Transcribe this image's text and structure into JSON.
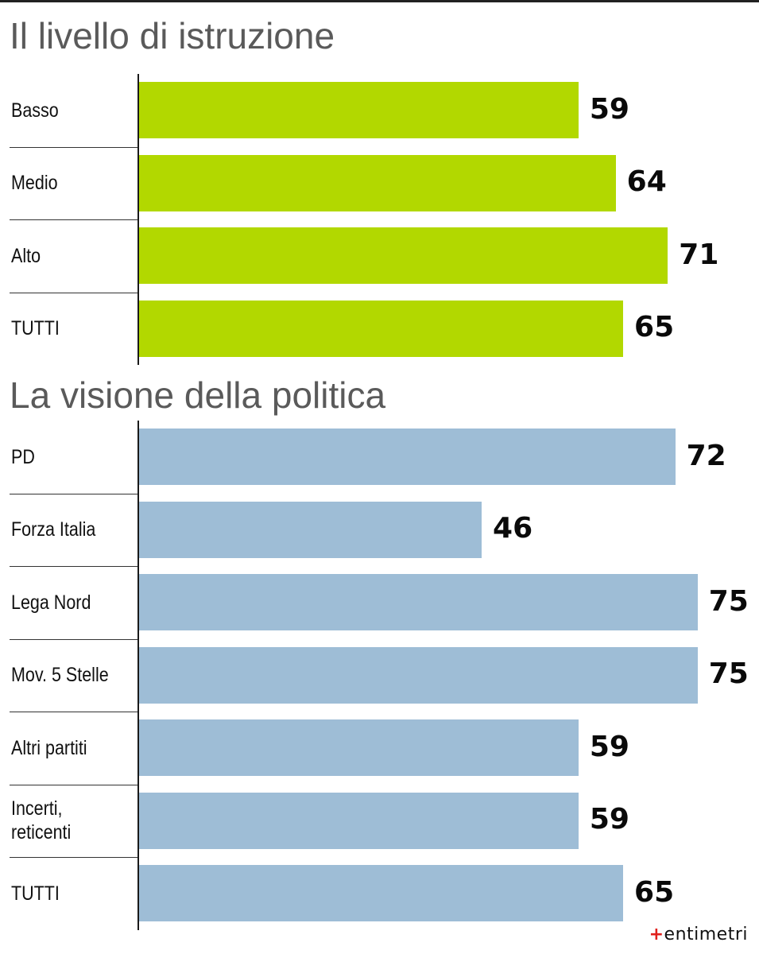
{
  "chart_data": [
    {
      "type": "bar",
      "orientation": "horizontal",
      "title": "Il livello di istruzione",
      "categories": [
        "Basso",
        "Medio",
        "Alto",
        "TUTTI"
      ],
      "values": [
        59,
        64,
        71,
        65
      ],
      "color": "#b2d800"
    },
    {
      "type": "bar",
      "orientation": "horizontal",
      "title": "La visione della politica",
      "categories": [
        "PD",
        "Forza Italia",
        "Lega Nord",
        "Mov. 5 Stelle",
        "Altri partiti",
        "Incerti,\nreticenti",
        "TUTTI"
      ],
      "values": [
        72,
        46,
        75,
        75,
        59,
        59,
        65
      ],
      "color": "#9ebdd6"
    }
  ],
  "brand": {
    "mark": "+",
    "name": "entimetri"
  }
}
